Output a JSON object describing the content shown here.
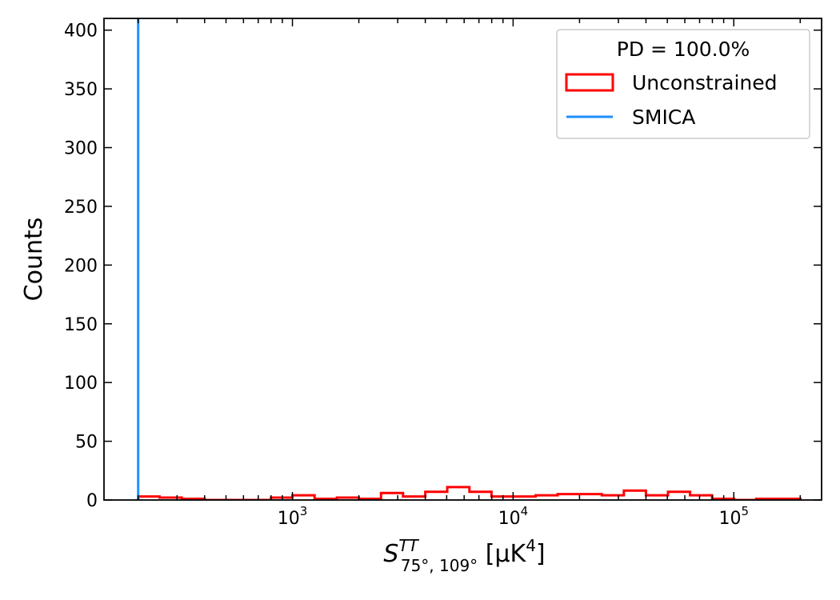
{
  "chart_data": {
    "type": "histogram",
    "xscale": "log",
    "xlim": [
      140,
      250000
    ],
    "ylim": [
      0,
      410
    ],
    "x_tick_labels": [
      {
        "value": 1000,
        "base": "10",
        "exp": "3"
      },
      {
        "value": 10000,
        "base": "10",
        "exp": "4"
      },
      {
        "value": 100000,
        "base": "10",
        "exp": "5"
      }
    ],
    "y_ticks": [
      0,
      50,
      100,
      150,
      200,
      250,
      300,
      350,
      400
    ],
    "xlabel": {
      "main": "S",
      "sup": "TT",
      "sub": "75°, 109°",
      "rest": " [μK",
      "rest_sup": "4",
      "rest_end": "]"
    },
    "ylabel": "Counts",
    "grid": false,
    "legend": {
      "placement": "top-right",
      "title": "PD  = 100.0%",
      "entries": [
        "Unconstrained",
        "SMICA"
      ]
    },
    "series": [
      {
        "name": "Unconstrained",
        "kind": "step-histogram",
        "color": "#ff0000",
        "bin_edges": [
          200,
          250,
          315,
          400,
          500,
          630,
          800,
          1000,
          1260,
          1590,
          2000,
          2520,
          3170,
          4000,
          5030,
          6340,
          7980,
          10050,
          12650,
          15920,
          20040,
          25230,
          31760,
          39980,
          50330,
          63360,
          79770,
          100400,
          126400,
          159100,
          200300
        ],
        "counts": [
          3,
          2,
          1,
          0,
          0,
          0,
          2,
          4,
          1,
          2,
          1,
          6,
          3,
          7,
          11,
          7,
          3,
          3,
          4,
          5,
          5,
          4,
          8,
          4,
          7,
          4,
          1,
          0,
          1,
          1
        ]
      },
      {
        "name": "SMICA",
        "kind": "vertical-line",
        "color": "#1e90ff",
        "x": 200
      }
    ]
  }
}
